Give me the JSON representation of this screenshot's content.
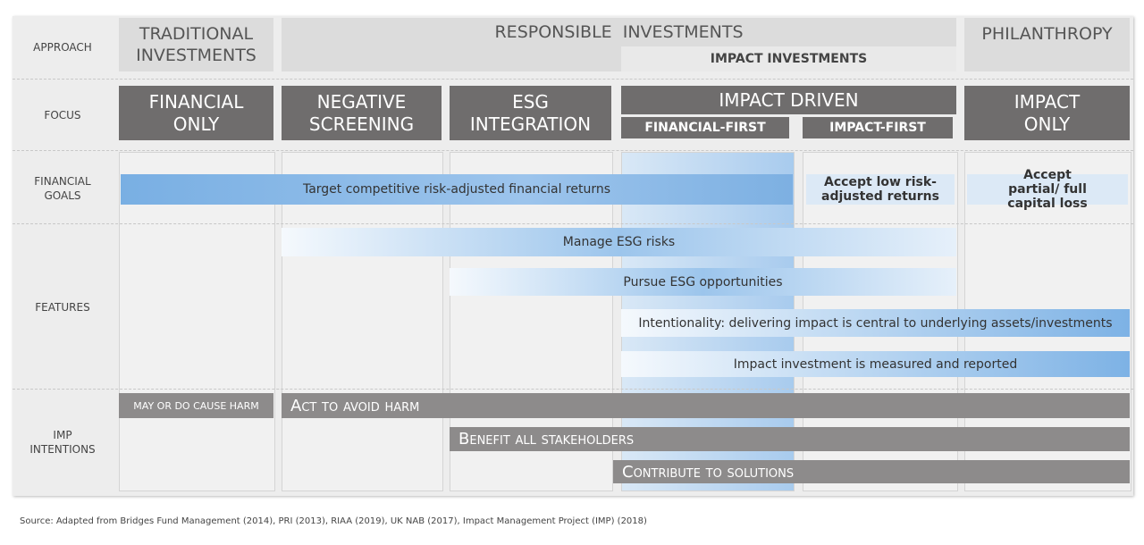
{
  "rows": {
    "approach": "APPROACH",
    "focus": "FOCUS",
    "financial_goals": "FINANCIAL GOALS",
    "features": "FEATURES",
    "imp_intentions": "IMP INTENTIONS"
  },
  "approach": {
    "traditional": "TRADITIONAL INVESTMENTS",
    "responsible": "RESPONSIBLE  INVESTMENTS",
    "impact": "IMPACT INVESTMENTS",
    "philanthropy": "PHILANTHROPY"
  },
  "focus": {
    "financial_only": "FINANCIAL ONLY",
    "negative_screening": "NEGATIVE SCREENING",
    "esg_integration": "ESG INTEGRATION",
    "impact_driven": "IMPACT DRIVEN",
    "financial_first": "FINANCIAL-FIRST",
    "impact_first": "IMPACT-FIRST",
    "impact_only": "IMPACT ONLY"
  },
  "financial_goals": {
    "competitive": "Target competitive risk-adjusted financial returns",
    "accept_low": "Accept low risk-adjusted returns",
    "accept_loss": "Accept partial/ full capital loss"
  },
  "features": {
    "manage_esg": "Manage ESG risks",
    "pursue_esg": "Pursue ESG opportunities",
    "intentionality": "Intentionality: delivering impact is central to underlying assets/investments",
    "measured": "Impact investment is measured and reported"
  },
  "imp_intentions": {
    "may_harm": "MAY OR DO CAUSE HARM",
    "avoid_harm": "Act to avoid harm",
    "benefit": "Benefit all stakeholders",
    "contribute": "Contribute to solutions"
  },
  "source": "Source: Adapted from Bridges Fund Management (2014), PRI (2013), RIAA (2019), UK NAB (2017), Impact Management Project (IMP) (2018)"
}
